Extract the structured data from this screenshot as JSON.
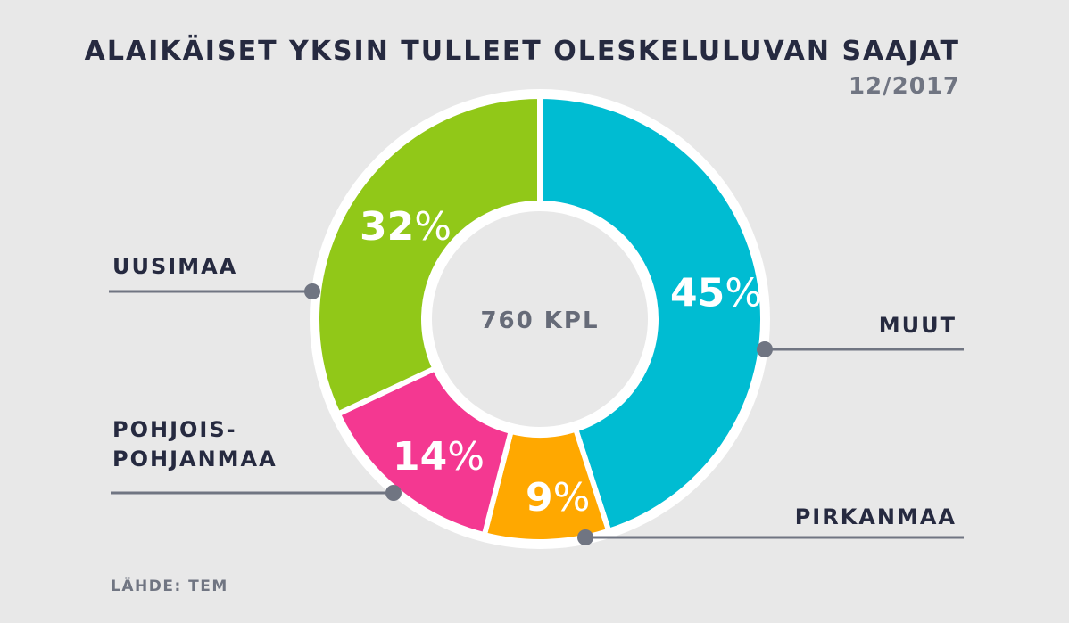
{
  "chart_data": {
    "type": "pie",
    "title": "ALAIKÄISET YKSIN TULLEET OLESKELULUVAN SAAJAT",
    "subtitle": "12/2017",
    "center_label": "760 KPL",
    "percent_sign": "%",
    "categories": [
      "MUUT",
      "PIRKANMAA",
      "POHJOIS-POHJANMAA",
      "UUSIMAA"
    ],
    "values": [
      45,
      9,
      14,
      32
    ],
    "slices": [
      {
        "label": "MUUT",
        "label_lines": [
          "MUUT"
        ],
        "value": 45,
        "color": "#00bcd2"
      },
      {
        "label": "PIRKANMAA",
        "label_lines": [
          "PIRKANMAA"
        ],
        "value": 9,
        "color": "#ffa800"
      },
      {
        "label": "POHJOIS-POHJANMAA",
        "label_lines": [
          "POHJOIS-",
          "POHJANMAA"
        ],
        "value": 14,
        "color": "#f43891"
      },
      {
        "label": "UUSIMAA",
        "label_lines": [
          "UUSIMAA"
        ],
        "value": 32,
        "color": "#91c818"
      }
    ],
    "source": "LÄHDE: TEM"
  }
}
